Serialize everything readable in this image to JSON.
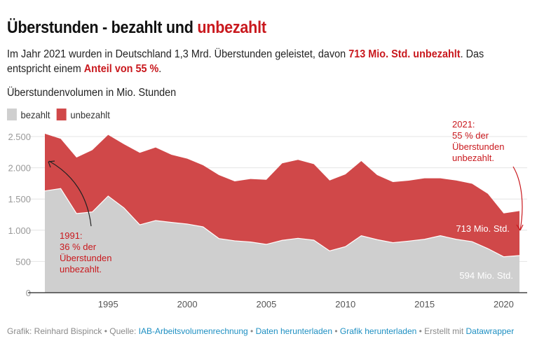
{
  "title": {
    "part1": "Überstunden - bezahlt und ",
    "part2": "unbezahlt"
  },
  "description": {
    "t1": "Im Jahr 2021 wurden in Deutschland 1,3 Mrd. Überstunden geleistet, davon ",
    "b1": "713 Mio. Std. unbezahlt",
    "t2": ". Das entspricht einem ",
    "b2": "Anteil von 55 %",
    "t3": "."
  },
  "colors": {
    "bezahlt": "#cfcfcf",
    "unbezahlt": "#d04849",
    "accent": "#c9191e"
  },
  "chart_data": {
    "type": "area",
    "stacked": true,
    "title": "Überstundenvolumen in Mio. Stunden",
    "xlabel": "",
    "ylabel": "",
    "x": [
      1991,
      1992,
      1993,
      1994,
      1995,
      1996,
      1997,
      1998,
      1999,
      2000,
      2001,
      2002,
      2003,
      2004,
      2005,
      2006,
      2007,
      2008,
      2009,
      2010,
      2011,
      2012,
      2013,
      2014,
      2015,
      2016,
      2017,
      2018,
      2019,
      2020,
      2021
    ],
    "series": [
      {
        "name": "bezahlt",
        "values": [
          1629,
          1667,
          1267,
          1293,
          1547,
          1357,
          1087,
          1155,
          1125,
          1099,
          1054,
          867,
          830,
          811,
          774,
          838,
          871,
          841,
          669,
          737,
          912,
          849,
          800,
          826,
          855,
          912,
          855,
          818,
          706,
          575,
          594
        ]
      },
      {
        "name": "unbezahlt",
        "values": [
          916,
          796,
          897,
          990,
          979,
          1020,
          1152,
          1170,
          1084,
          1046,
          986,
          1016,
          953,
          1009,
          1034,
          1233,
          1256,
          1218,
          1128,
          1158,
          1195,
          1034,
          971,
          968,
          976,
          919,
          942,
          927,
          878,
          695,
          713
        ]
      }
    ],
    "xlim": [
      1991,
      2021
    ],
    "ylim": [
      0,
      2500
    ],
    "yticks": [
      0,
      500,
      1000,
      1500,
      2000,
      2500
    ],
    "ytick_labels": [
      "0",
      "500",
      "1.000",
      "1.500",
      "2.000",
      "2.500"
    ],
    "xticks": [
      1995,
      2000,
      2005,
      2010,
      2015,
      2020
    ],
    "xtick_labels": [
      "1995",
      "2000",
      "2005",
      "2010",
      "2015",
      "2020"
    ],
    "grid": true,
    "legend": {
      "position": "top-left",
      "entries": [
        "bezahlt",
        "unbezahlt"
      ]
    },
    "annotations": {
      "a1991": [
        "1991:",
        "36 % der",
        "Überstunden",
        "unbezahlt."
      ],
      "a2021": [
        "2021:",
        "55 % der",
        "Überstunden",
        "unbezahlt."
      ],
      "label_unbezahlt_2021": "713 Mio. Std.",
      "label_bezahlt_2021": "594 Mio. Std."
    }
  },
  "footer": {
    "grafik": "Grafik: Reinhard Bispinck",
    "sep": " • ",
    "quelle_label": "Quelle: ",
    "quelle_link": "IAB-Arbeitsvolumenrechnung",
    "daten_link": "Daten herunterladen",
    "grafik_link": "Grafik herunterladen",
    "erstellt": "Erstellt mit ",
    "dw_link": "Datawrapper"
  }
}
